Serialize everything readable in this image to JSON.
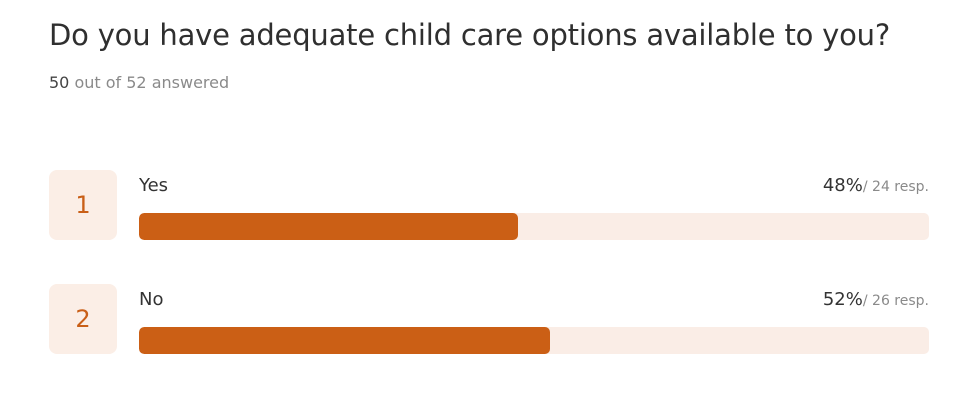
{
  "question": {
    "title": "Do you have adequate child care options available to you?",
    "answered_count": "50",
    "answered_suffix": "out of 52 answered"
  },
  "colors": {
    "accent": "#cb5f15",
    "track": "#faede6",
    "number_bg": "#fbeee6",
    "number_text": "#c95f17"
  },
  "options": [
    {
      "number": "1",
      "label": "Yes",
      "percent": "48%",
      "resp": "/ 24 resp."
    },
    {
      "number": "2",
      "label": "No",
      "percent": "52%",
      "resp": "/ 26 resp."
    }
  ],
  "chart_data": {
    "type": "bar",
    "orientation": "horizontal",
    "categories": [
      "Yes",
      "No"
    ],
    "values": [
      48,
      52
    ],
    "responses": [
      24,
      26
    ],
    "unit": "%",
    "xlim": [
      0,
      100
    ],
    "grid": false,
    "title": "Do you have adequate child care options available to you?"
  }
}
